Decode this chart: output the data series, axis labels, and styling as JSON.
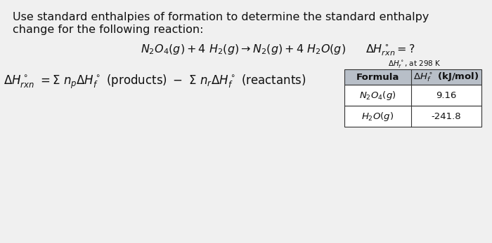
{
  "background_color": "#d8d8d8",
  "title_line1": "Use standard enthalpies of formation to determine the standard enthalpy",
  "title_line2": "change for the following reaction:",
  "table_header_note": "ΔH°f, at 298 K",
  "table_header_color": "#b8bfc8",
  "table_row_color": "#ffffff",
  "table_border_color": "#333333",
  "text_color": "#111111",
  "content_bg": "#e8e8e8",
  "title_fontsize": 11.5,
  "reaction_fontsize": 11.5,
  "equation_fontsize": 12,
  "table_fontsize": 9.5,
  "note_fontsize": 7.5
}
